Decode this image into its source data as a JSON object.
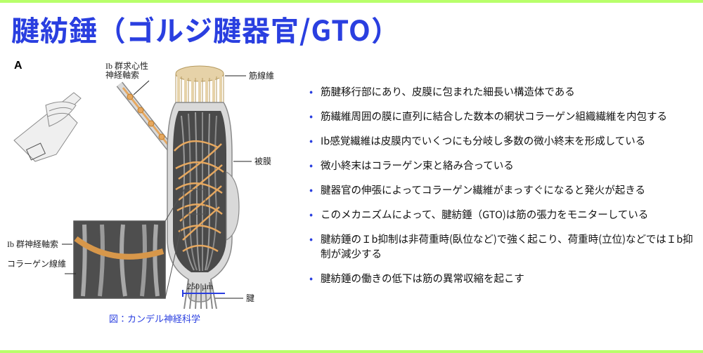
{
  "accent_color": "#b8ff6b",
  "title": {
    "text": "腱紡錘（ゴルジ腱器官/GTO）",
    "color": "#2a3fe0"
  },
  "figure": {
    "panel_label": "A",
    "labels": {
      "muscle_fiber": "筋線維",
      "ib_afferent_axon": "Ib 群求心性\n神経軸索",
      "capsule": "被膜",
      "ib_axon": "Ib 群神経軸索",
      "collagen_fiber": "コラーゲン線維",
      "tendon": "腱",
      "scale": "250 µm"
    },
    "caption": "図：カンデル神経科学",
    "caption_color": "#2a3fe0",
    "colors": {
      "muscle_fiber_fill": "#e6d2a8",
      "muscle_fiber_stroke": "#b59a5f",
      "capsule_fill": "#d9d9d9",
      "capsule_stroke": "#8a8a8a",
      "collagen_stroke": "#6b6b6b",
      "axon_fill": "#e6a860",
      "axon_stroke": "#c07d2a",
      "arm_fill": "#efefef",
      "arm_stroke": "#8a8a8a",
      "inset_border": "#555",
      "scale_bar": "#2a3fe0",
      "label_line": "#222"
    }
  },
  "bullets": {
    "color": "#2a3fe0",
    "items": [
      "筋腱移行部にあり、皮膜に包まれた細長い構造体である",
      "筋繊維周囲の膜に直列に結合した数本の網状コラーゲン組織繊維を内包する",
      "Ib感覚繊維は皮膜内でいくつにも分岐し多数の微小終末を形成している",
      "微小終末はコラーゲン束と絡み合っている",
      "腱器官の伸張によってコラーゲン繊維がまっすぐになると発火が起きる",
      "このメカニズムによって、腱紡錘（GTO)は筋の張力をモニターしている",
      "腱紡錘のＩb抑制は非荷重時(臥位など)で強く起こり、荷重時(立位)などではＩb抑制が減少する",
      "腱紡錘の働きの低下は筋の異常収縮を起こす"
    ]
  }
}
